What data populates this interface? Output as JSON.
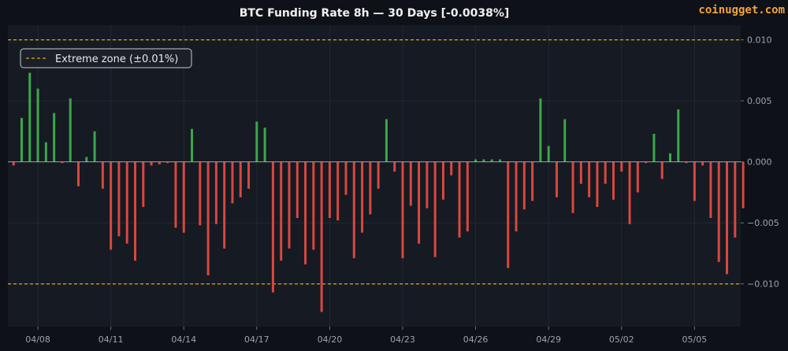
{
  "header": {
    "brand": "coinugget.com"
  },
  "colors": {
    "background": "#0e1117",
    "plot_background": "#161a22",
    "positive": "#3aa84a",
    "negative": "#d9473f",
    "threshold": "#e3a21a",
    "zero_line": "#9aa0a8",
    "grid": "#232833"
  },
  "chart_data": {
    "type": "bar",
    "title": "BTC Funding Rate 8h — 30 Days  [-0.0038%]",
    "xlabel": "",
    "ylabel": "",
    "ylim": [
      -0.0135,
      0.0112
    ],
    "xlim": [
      -0.7,
      89.7
    ],
    "y_ticks": [
      {
        "value": 0.01,
        "label": "0.010"
      },
      {
        "value": 0.005,
        "label": "0.005"
      },
      {
        "value": 0.0,
        "label": "0.000"
      },
      {
        "value": -0.005,
        "label": "−0.005"
      },
      {
        "value": -0.01,
        "label": "−0.010"
      }
    ],
    "x_ticks": [
      {
        "index": 3,
        "label": "04/08"
      },
      {
        "index": 12,
        "label": "04/11"
      },
      {
        "index": 21,
        "label": "04/14"
      },
      {
        "index": 30,
        "label": "04/17"
      },
      {
        "index": 39,
        "label": "04/20"
      },
      {
        "index": 48,
        "label": "04/23"
      },
      {
        "index": 57,
        "label": "04/26"
      },
      {
        "index": 66,
        "label": "04/29"
      },
      {
        "index": 75,
        "label": "05/02"
      },
      {
        "index": 84,
        "label": "05/05"
      }
    ],
    "grid": true,
    "legend": {
      "position": "top-left",
      "entries": [
        {
          "label": "Extreme zone (±0.01%)",
          "style": "dashed",
          "color": "#e3a21a"
        }
      ]
    },
    "thresholds": [
      0.01,
      -0.01
    ],
    "values": [
      -0.0003,
      0.0036,
      0.0073,
      0.006,
      0.0016,
      0.004,
      -0.0001,
      0.0052,
      -0.002,
      0.0004,
      0.0025,
      -0.0022,
      -0.0072,
      -0.0061,
      -0.0067,
      -0.0081,
      -0.0037,
      -0.0003,
      -0.0002,
      -0.0001,
      -0.0054,
      -0.0058,
      0.0027,
      -0.0052,
      -0.0093,
      -0.0051,
      -0.0071,
      -0.0034,
      -0.0029,
      -0.0022,
      0.0033,
      0.0028,
      -0.0107,
      -0.0081,
      -0.0071,
      -0.0046,
      -0.0084,
      -0.0072,
      -0.0123,
      -0.0046,
      -0.0048,
      -0.0027,
      -0.0079,
      -0.0058,
      -0.0043,
      -0.0022,
      0.0035,
      -0.0008,
      -0.0079,
      -0.0036,
      -0.0067,
      -0.0038,
      -0.0078,
      -0.0031,
      -0.0011,
      -0.0062,
      -0.0057,
      0.0002,
      0.0002,
      0.0002,
      0.0002,
      -0.0087,
      -0.0057,
      -0.0039,
      -0.0032,
      0.0052,
      0.0013,
      -0.0029,
      0.0035,
      -0.0042,
      -0.0018,
      -0.0029,
      -0.0037,
      -0.0018,
      -0.0031,
      -0.0008,
      -0.0051,
      -0.0025,
      -0.0001,
      0.0023,
      -0.0014,
      0.0007,
      0.0043,
      -0.0001,
      -0.0032,
      -0.0003,
      -0.0046,
      -0.0082,
      -0.0092,
      -0.0062,
      -0.0038
    ]
  }
}
